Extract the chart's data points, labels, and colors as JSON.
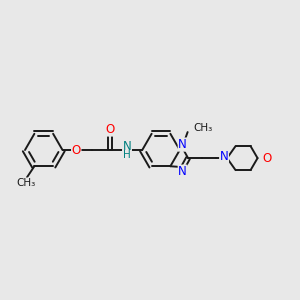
{
  "bg_color": "#e8e8e8",
  "bond_color": "#1a1a1a",
  "n_color": "#0000ff",
  "o_color": "#ff0000",
  "nh_color": "#008080",
  "line_width": 1.4,
  "font_size": 8.5,
  "fig_width": 3.0,
  "fig_height": 3.0,
  "dpi": 100,
  "xlim": [
    0,
    12
  ],
  "ylim": [
    0,
    10
  ]
}
